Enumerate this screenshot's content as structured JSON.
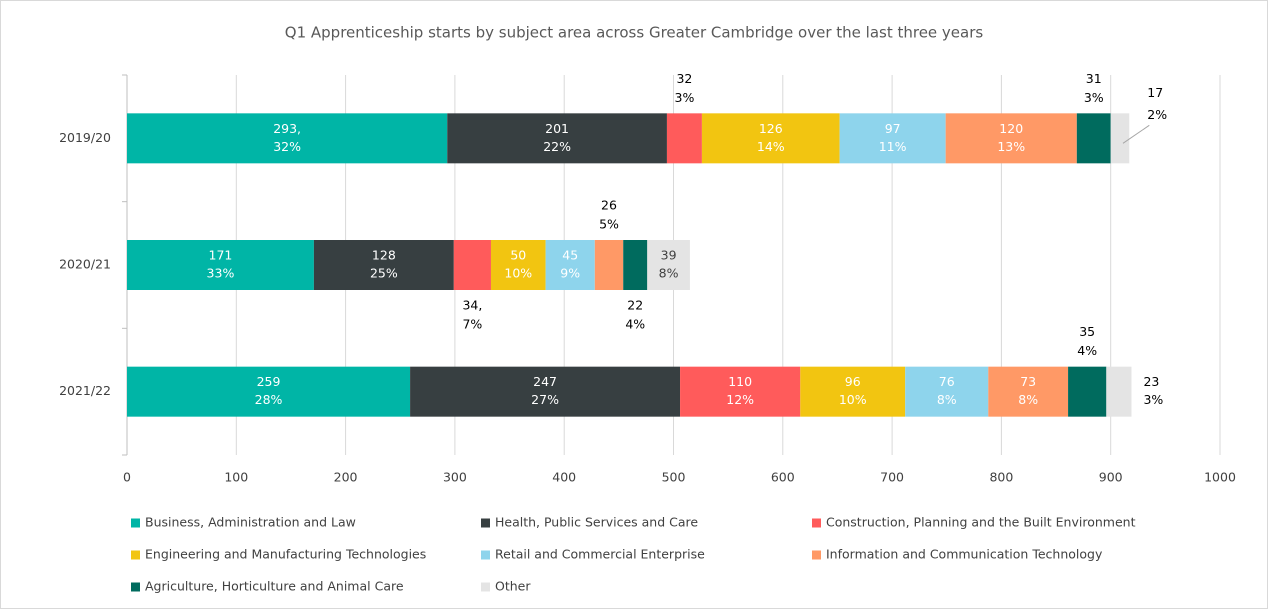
{
  "chart_data": {
    "type": "stacked_bar_horizontal",
    "title": "Q1 Apprenticeship starts by subject area across Greater Cambridge over the last three years",
    "categories": [
      "2019/20",
      "2020/21",
      "2021/22"
    ],
    "xlim": [
      0,
      1000
    ],
    "xticks": [
      0,
      100,
      200,
      300,
      400,
      500,
      600,
      700,
      800,
      900,
      1000
    ],
    "grid": true,
    "legend": "bottom",
    "series": [
      {
        "name": "Business, Administration and Law",
        "color": "#00b5a6",
        "values": [
          293,
          171,
          259
        ],
        "value_labels": [
          "293,",
          "171",
          "259"
        ],
        "share_labels": [
          "32%",
          "33%",
          "28%"
        ]
      },
      {
        "name": "Health, Public Services and Care",
        "color": "#373f41",
        "values": [
          201,
          128,
          247
        ],
        "value_labels": [
          "201",
          "128",
          "247"
        ],
        "share_labels": [
          "22%",
          "25%",
          "27%"
        ]
      },
      {
        "name": "Construction, Planning and the Built Environment",
        "color": "#ff5b5b",
        "values": [
          32,
          34,
          110
        ],
        "value_labels": [
          "32",
          "34,",
          "110"
        ],
        "share_labels": [
          "3%",
          "7%",
          "12%"
        ]
      },
      {
        "name": "Engineering and Manufacturing Technologies",
        "color": "#f2c511",
        "values": [
          126,
          50,
          96
        ],
        "value_labels": [
          "126",
          "50",
          "96"
        ],
        "share_labels": [
          "14%",
          "10%",
          "10%"
        ]
      },
      {
        "name": "Retail and Commercial Enterprise",
        "color": "#8ed4ec",
        "values": [
          97,
          45,
          76
        ],
        "value_labels": [
          "97",
          "45",
          "76"
        ],
        "share_labels": [
          "11%",
          "9%",
          "8%"
        ]
      },
      {
        "name": "Information and Communication Technology",
        "color": "#ff9966",
        "values": [
          120,
          26,
          73
        ],
        "value_labels": [
          "120",
          "26",
          "73"
        ],
        "share_labels": [
          "13%",
          "5%",
          "8%"
        ]
      },
      {
        "name": "Agriculture, Horticulture and Animal Care",
        "color": "#006b5e",
        "values": [
          31,
          22,
          35
        ],
        "value_labels": [
          "31",
          "22",
          "35"
        ],
        "share_labels": [
          "3%",
          "4%",
          "4%"
        ]
      },
      {
        "name": "Other",
        "color": "#e4e4e4",
        "values": [
          17,
          39,
          23
        ],
        "value_labels": [
          "17",
          "39",
          "23"
        ],
        "share_labels": [
          "2%",
          "8%",
          "3%"
        ]
      }
    ]
  }
}
